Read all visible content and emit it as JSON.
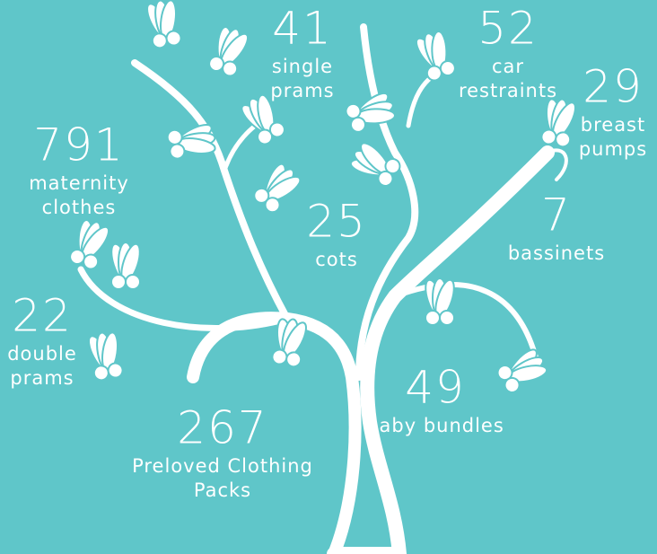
{
  "items": [
    {
      "number": 41,
      "label": [
        "single",
        "prams"
      ]
    },
    {
      "number": 52,
      "label": [
        "car",
        "restraints"
      ]
    },
    {
      "number": 29,
      "label": [
        "breast",
        "pumps"
      ]
    },
    {
      "number": 791,
      "label": [
        "maternity",
        "clothes"
      ]
    },
    {
      "number": 25,
      "label": [
        "cots"
      ]
    },
    {
      "number": 7,
      "label": [
        "bassinets"
      ]
    },
    {
      "number": 22,
      "label": [
        "double",
        "prams"
      ]
    },
    {
      "number": 49,
      "label": [
        "baby bundles"
      ]
    },
    {
      "number": 267,
      "label": [
        "Preloved Clothing",
        "Packs"
      ]
    }
  ]
}
